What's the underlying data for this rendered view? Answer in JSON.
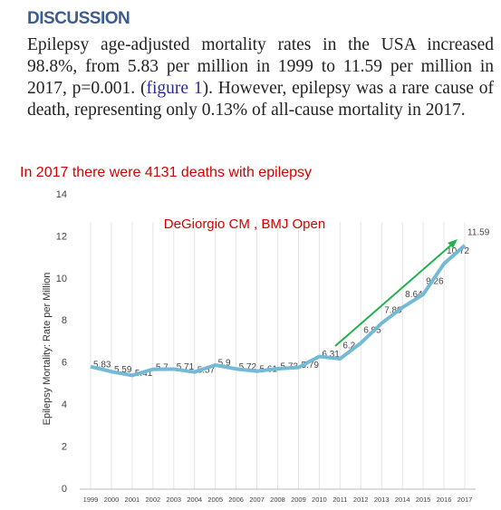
{
  "heading": "DISCUSSION",
  "paragraph": [
    "Epilepsy age-adjusted mortality rates in the USA increased 98.8%, from 5.83 per million in 1999 to 11.59 per million in 2017, p=0.001. (",
    "figure 1",
    "). However, epilepsy was a rare cause of death, representing only 0.13% of all-cause mortality in 2017."
  ],
  "note": "In 2017 there were 4131 deaths with epilepsy",
  "chart_data": {
    "type": "line",
    "annotations": [
      "DeGiorgio CM , BMJ Open"
    ],
    "ylabel": "Epilepsy Mortality: Rate per Million",
    "categories": [
      "1999",
      "2000",
      "2001",
      "2002",
      "2003",
      "2004",
      "2005",
      "2006",
      "2007",
      "2008",
      "2009",
      "2010",
      "2011",
      "2012",
      "2013",
      "2014",
      "2015",
      "2016",
      "2017"
    ],
    "series": [
      {
        "color": "#74b9d6",
        "values": [
          5.83,
          5.59,
          5.41,
          5.7,
          5.71,
          5.57,
          5.9,
          5.72,
          5.61,
          5.73,
          5.79,
          6.31,
          6.2,
          6.95,
          7.89,
          8.64,
          9.26,
          10.72,
          11.59
        ]
      }
    ],
    "ylim": [
      0,
      14
    ],
    "yticks": [
      0,
      2,
      4,
      6,
      8,
      10,
      12,
      14
    ],
    "grid": true
  }
}
